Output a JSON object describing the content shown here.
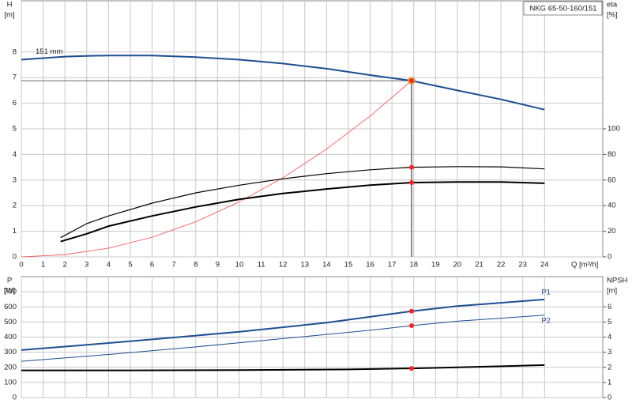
{
  "chart_data": [
    {
      "type": "line",
      "title": "NKG 65-50-160/151",
      "annotation": "151 mm",
      "xlabel": "Q [m³/h]",
      "ylabel": [
        "H",
        "[m]"
      ],
      "y2label": [
        "eta",
        "[%]"
      ],
      "xlim": [
        0,
        26.67
      ],
      "xticks": [
        0,
        1,
        2,
        3,
        4,
        5,
        6,
        7,
        8,
        9,
        10,
        11,
        12,
        13,
        14,
        15,
        16,
        17,
        18,
        19,
        20,
        21,
        22,
        23,
        24
      ],
      "ylim": [
        0,
        10
      ],
      "yticks": [
        0,
        1,
        2,
        3,
        4,
        5,
        6,
        7,
        8
      ],
      "y2lim": [
        0,
        200
      ],
      "y2ticks": [
        0,
        20,
        40,
        60,
        80,
        100
      ],
      "operating_point": {
        "q": 17.9,
        "h": 6.88
      },
      "series": [
        {
          "color": "#1d4f91",
          "width": 2,
          "x": [
            0,
            2,
            3,
            4,
            6,
            8,
            10,
            12,
            14,
            16,
            17.9,
            20,
            22,
            24
          ],
          "values": [
            7.7,
            7.82,
            7.85,
            7.86,
            7.86,
            7.8,
            7.7,
            7.55,
            7.35,
            7.1,
            6.88,
            6.5,
            6.15,
            5.75
          ]
        },
        {
          "color": "#ff4a4a",
          "width": 0.8,
          "x": [
            0,
            2,
            4,
            6,
            8,
            10,
            12,
            14,
            16,
            17.9
          ],
          "values": [
            0,
            0.086,
            0.34,
            0.77,
            1.37,
            2.15,
            3.09,
            4.21,
            5.5,
            6.88
          ]
        },
        {
          "color": "#000000",
          "width": 1.2,
          "axis": "y2",
          "x": [
            1.8,
            3,
            4,
            6,
            8,
            10,
            12,
            14,
            16,
            17.9,
            20,
            22,
            24
          ],
          "values": [
            15,
            26,
            32,
            42,
            50,
            56,
            61,
            65,
            68,
            70,
            70.5,
            70.3,
            68.7
          ]
        },
        {
          "color": "#000000",
          "width": 2,
          "axis": "y2",
          "x": [
            1.8,
            3,
            4,
            6,
            8,
            10,
            12,
            14,
            16,
            17.9,
            20,
            22,
            24
          ],
          "values": [
            12,
            18,
            24,
            32,
            39,
            45,
            49.5,
            53,
            56,
            58,
            58.5,
            58.5,
            57.5
          ]
        }
      ]
    },
    {
      "type": "line",
      "ylabel": [
        "P",
        "[W]"
      ],
      "y2label": [
        "NPSH",
        "[m]"
      ],
      "xlim": [
        0,
        26.67
      ],
      "xticks": [
        0,
        1,
        2,
        3,
        4,
        5,
        6,
        7,
        8,
        9,
        10,
        11,
        12,
        13,
        14,
        15,
        16,
        17,
        18,
        19,
        20,
        21,
        22,
        23,
        24
      ],
      "ylim": [
        0,
        800
      ],
      "yticks": [
        0,
        100,
        200,
        300,
        400,
        500,
        600,
        700
      ],
      "y2lim": [
        0,
        8
      ],
      "y2ticks": [
        0,
        1,
        2,
        3,
        4,
        5,
        6
      ],
      "operating_point": {
        "q": 17.9
      },
      "series": [
        {
          "name": "P1",
          "color": "#1d4f91",
          "width": 2,
          "x": [
            0,
            2.7,
            6,
            10,
            14,
            17.9,
            20,
            24
          ],
          "values": [
            314,
            345,
            385,
            435,
            495,
            571,
            605,
            649
          ]
        },
        {
          "name": "P2",
          "color": "#1d4f91",
          "width": 1,
          "x": [
            0,
            4,
            8,
            12,
            16,
            17.9,
            20,
            24
          ],
          "values": [
            240,
            285,
            335,
            390,
            445,
            476,
            505,
            545
          ]
        },
        {
          "color": "#000000",
          "width": 2,
          "axis": "y2",
          "x": [
            0,
            5,
            10,
            15,
            17.9,
            20,
            22,
            24
          ],
          "values": [
            1.8,
            1.8,
            1.82,
            1.86,
            1.93,
            2.0,
            2.07,
            2.15
          ]
        }
      ]
    }
  ]
}
